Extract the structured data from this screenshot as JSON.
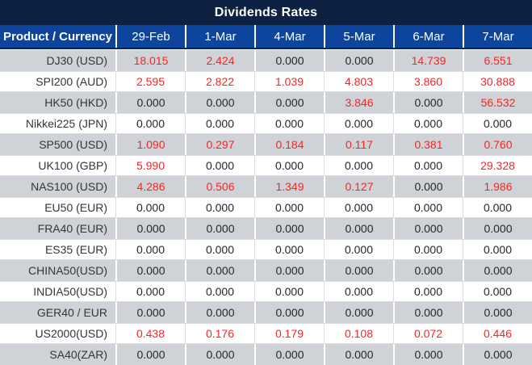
{
  "chart_data": {
    "type": "table",
    "title": "Dividends Rates",
    "product_header": "Product / Currency",
    "date_headers": [
      "29-Feb",
      "1-Mar",
      "4-Mar",
      "5-Mar",
      "6-Mar",
      "7-Mar"
    ],
    "rows": [
      {
        "product": "DJ30 (USD)",
        "values": [
          "18.015",
          "2.424",
          "0.000",
          "0.000",
          "14.739",
          "6.551"
        ]
      },
      {
        "product": "SPI200 (AUD)",
        "values": [
          "2.595",
          "2.822",
          "1.039",
          "4.803",
          "3.860",
          "30.888"
        ]
      },
      {
        "product": "HK50 (HKD)",
        "values": [
          "0.000",
          "0.000",
          "0.000",
          "3.846",
          "0.000",
          "56.532"
        ]
      },
      {
        "product": "Nikkei225 (JPN)",
        "values": [
          "0.000",
          "0.000",
          "0.000",
          "0.000",
          "0.000",
          "0.000"
        ]
      },
      {
        "product": "SP500 (USD)",
        "values": [
          "1.090",
          "0.297",
          "0.184",
          "0.117",
          "0.381",
          "0.760"
        ]
      },
      {
        "product": "UK100 (GBP)",
        "values": [
          "5.990",
          "0.000",
          "0.000",
          "0.000",
          "0.000",
          "29.328"
        ]
      },
      {
        "product": "NAS100 (USD)",
        "values": [
          "4.286",
          "0.506",
          "1.349",
          "0.127",
          "0.000",
          "1.986"
        ]
      },
      {
        "product": "EU50 (EUR)",
        "values": [
          "0.000",
          "0.000",
          "0.000",
          "0.000",
          "0.000",
          "0.000"
        ]
      },
      {
        "product": "FRA40 (EUR)",
        "values": [
          "0.000",
          "0.000",
          "0.000",
          "0.000",
          "0.000",
          "0.000"
        ]
      },
      {
        "product": "ES35 (EUR)",
        "values": [
          "0.000",
          "0.000",
          "0.000",
          "0.000",
          "0.000",
          "0.000"
        ]
      },
      {
        "product": "CHINA50(USD)",
        "values": [
          "0.000",
          "0.000",
          "0.000",
          "0.000",
          "0.000",
          "0.000"
        ]
      },
      {
        "product": "INDIA50(USD)",
        "values": [
          "0.000",
          "0.000",
          "0.000",
          "0.000",
          "0.000",
          "0.000"
        ]
      },
      {
        "product": "GER40 / EUR",
        "values": [
          "0.000",
          "0.000",
          "0.000",
          "0.000",
          "0.000",
          "0.000"
        ]
      },
      {
        "product": "US2000(USD)",
        "values": [
          "0.438",
          "0.176",
          "0.179",
          "0.108",
          "0.072",
          "0.446"
        ]
      },
      {
        "product": "SA40(ZAR)",
        "values": [
          "0.000",
          "0.000",
          "0.000",
          "0.000",
          "0.000",
          "0.000"
        ]
      }
    ],
    "layout": {
      "legend": "none",
      "grid": "on",
      "zebra_striping": true
    }
  },
  "colors": {
    "title_bg": "#0D2143",
    "header_bg": "#0E459C",
    "header_text": "#FFFFFF",
    "row_alt_bg": "#CFD2D6",
    "row_bg": "#FFFFFF",
    "zero_value_text": "#26262B",
    "nonzero_value_text": "#F92525",
    "product_text": "#333538"
  }
}
